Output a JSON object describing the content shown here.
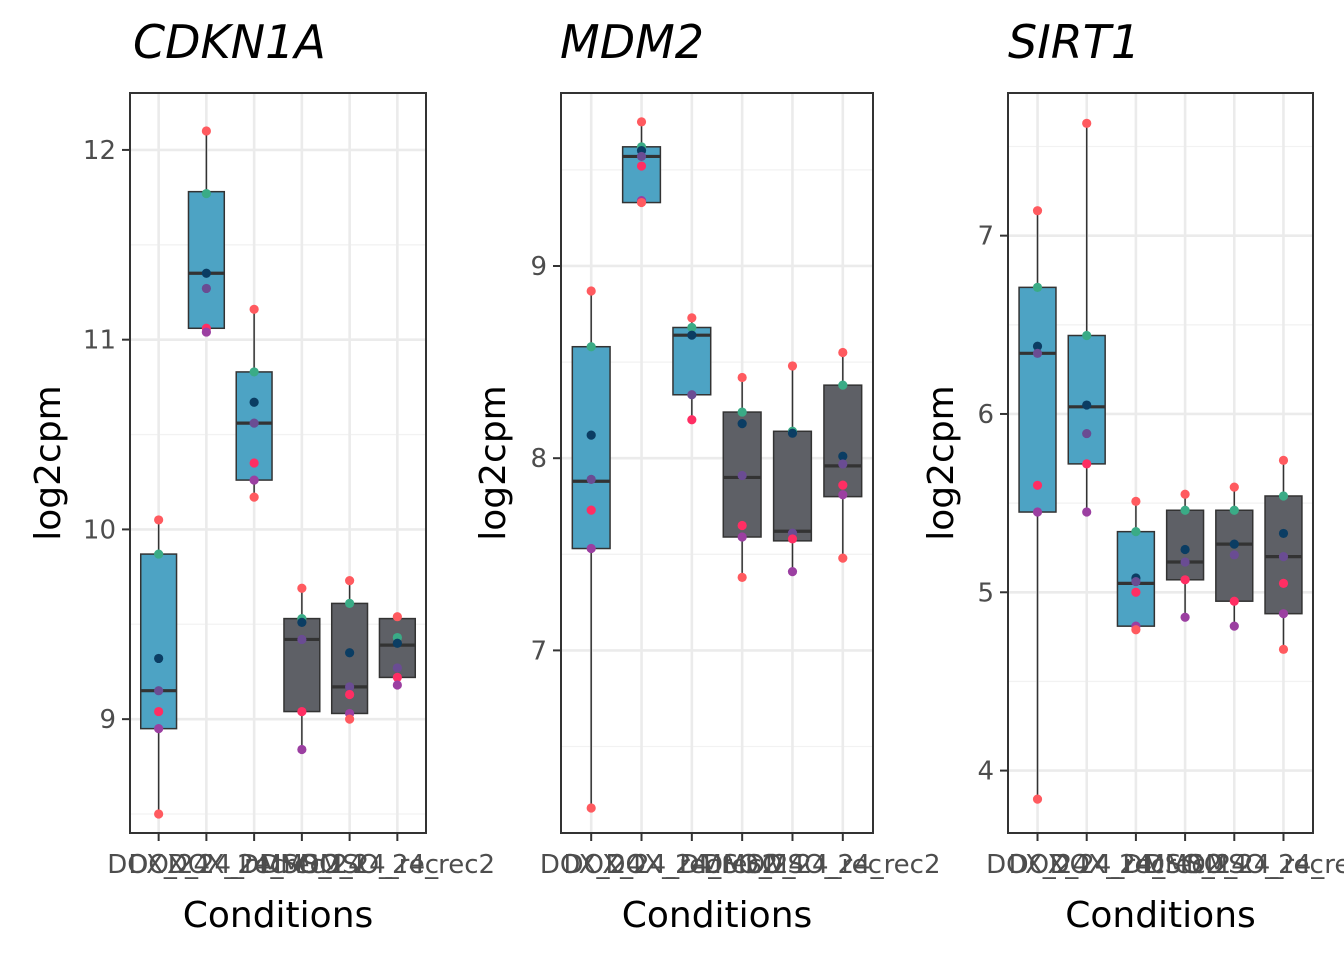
{
  "figure": {
    "ylabel": "log2cpm",
    "xlabel": "Conditions"
  },
  "colors": {
    "box_blue": "#4da3c4",
    "box_grey": "#5e6066",
    "points": [
      "#ff5a5f",
      "#3aab86",
      "#0b3d63",
      "#6a4c93",
      "#ff2e63",
      "#9b3fa1"
    ]
  },
  "chart_data": [
    {
      "type": "box",
      "title": "CDKN1A",
      "xlabel": "Conditions",
      "ylabel": "log2cpm",
      "categories": [
        "DOX_24",
        "DOX_24_rec",
        "DOX_24_rec2",
        "DMSO_24",
        "DMSO_24_rec",
        "DMSO_24_rec2"
      ],
      "ylim": [
        8.4,
        12.3
      ],
      "yticks": [
        9,
        10,
        11,
        12
      ],
      "grid": true,
      "boxes": [
        {
          "q1": 8.95,
          "median": 9.15,
          "q3": 9.87,
          "lo": 8.5,
          "hi": 10.05,
          "group": "treated"
        },
        {
          "q1": 11.06,
          "median": 11.35,
          "q3": 11.78,
          "lo": 11.04,
          "hi": 12.1,
          "group": "treated"
        },
        {
          "q1": 10.26,
          "median": 10.56,
          "q3": 10.83,
          "lo": 10.17,
          "hi": 11.16,
          "group": "treated"
        },
        {
          "q1": 9.04,
          "median": 9.42,
          "q3": 9.53,
          "lo": 8.84,
          "hi": 9.69,
          "group": "control"
        },
        {
          "q1": 9.03,
          "median": 9.17,
          "q3": 9.61,
          "lo": 9.0,
          "hi": 9.73,
          "group": "control"
        },
        {
          "q1": 9.22,
          "median": 9.39,
          "q3": 9.53,
          "lo": 9.18,
          "hi": 9.54,
          "group": "control"
        }
      ],
      "points": [
        [
          10.05,
          9.87,
          9.32,
          9.15,
          9.04,
          8.95,
          8.5
        ],
        [
          12.1,
          11.77,
          11.35,
          11.27,
          11.06,
          11.04
        ],
        [
          11.16,
          10.83,
          10.67,
          10.56,
          10.35,
          10.26,
          10.17
        ],
        [
          9.69,
          9.53,
          9.51,
          9.42,
          9.04,
          8.84
        ],
        [
          9.73,
          9.61,
          9.35,
          9.17,
          9.13,
          9.03,
          9.0
        ],
        [
          9.54,
          9.43,
          9.4,
          9.27,
          9.22,
          9.18
        ]
      ]
    },
    {
      "type": "box",
      "title": "MDM2",
      "xlabel": "Conditions",
      "ylabel": "log2cpm",
      "categories": [
        "DOX_24",
        "DOX_24_rec",
        "DOX_24_rec2",
        "DMSO_24",
        "DMSO_24_rec",
        "DMSO_24_rec2"
      ],
      "ylim": [
        6.05,
        9.9
      ],
      "yticks": [
        7,
        8,
        9
      ],
      "grid": true,
      "boxes": [
        {
          "q1": 7.53,
          "median": 7.88,
          "q3": 8.58,
          "lo": 6.18,
          "hi": 8.87,
          "group": "treated"
        },
        {
          "q1": 9.33,
          "median": 9.57,
          "q3": 9.62,
          "lo": 9.32,
          "hi": 9.75,
          "group": "treated"
        },
        {
          "q1": 8.33,
          "median": 8.64,
          "q3": 8.68,
          "lo": 8.2,
          "hi": 8.73,
          "group": "treated"
        },
        {
          "q1": 7.59,
          "median": 7.9,
          "q3": 8.24,
          "lo": 7.38,
          "hi": 8.42,
          "group": "control"
        },
        {
          "q1": 7.57,
          "median": 7.62,
          "q3": 8.14,
          "lo": 7.41,
          "hi": 8.48,
          "group": "control"
        },
        {
          "q1": 7.8,
          "median": 7.96,
          "q3": 8.38,
          "lo": 7.48,
          "hi": 8.55,
          "group": "control"
        }
      ],
      "points": [
        [
          8.87,
          8.58,
          8.12,
          7.89,
          7.73,
          7.53,
          6.18
        ],
        [
          9.75,
          9.62,
          9.6,
          9.57,
          9.52,
          9.34,
          9.33
        ],
        [
          8.73,
          8.68,
          8.64,
          8.33,
          8.2
        ],
        [
          8.42,
          8.24,
          8.18,
          7.91,
          7.65,
          7.59,
          7.38
        ],
        [
          8.48,
          8.14,
          8.13,
          7.61,
          7.58,
          7.41
        ],
        [
          8.55,
          8.38,
          8.01,
          7.97,
          7.86,
          7.81,
          7.48
        ]
      ]
    },
    {
      "type": "box",
      "title": "SIRT1",
      "xlabel": "Conditions",
      "ylabel": "log2cpm",
      "categories": [
        "DOX_24",
        "DOX_24_rec",
        "DOX_24_rec2",
        "DMSO_24",
        "DMSO_24_rec",
        "DMSO_24_rec2"
      ],
      "ylim": [
        3.65,
        7.8
      ],
      "yticks": [
        4,
        5,
        6,
        7
      ],
      "grid": true,
      "boxes": [
        {
          "q1": 5.45,
          "median": 6.34,
          "q3": 6.71,
          "lo": 3.84,
          "hi": 7.14,
          "group": "treated"
        },
        {
          "q1": 5.72,
          "median": 6.04,
          "q3": 6.44,
          "lo": 5.45,
          "hi": 7.63,
          "group": "treated"
        },
        {
          "q1": 4.81,
          "median": 5.05,
          "q3": 5.34,
          "lo": 4.79,
          "hi": 5.51,
          "group": "treated"
        },
        {
          "q1": 5.07,
          "median": 5.17,
          "q3": 5.46,
          "lo": 4.86,
          "hi": 5.55,
          "group": "control"
        },
        {
          "q1": 4.95,
          "median": 5.27,
          "q3": 5.46,
          "lo": 4.81,
          "hi": 5.59,
          "group": "control"
        },
        {
          "q1": 4.88,
          "median": 5.2,
          "q3": 5.54,
          "lo": 4.68,
          "hi": 5.74,
          "group": "control"
        }
      ],
      "points": [
        [
          7.14,
          6.71,
          6.38,
          6.34,
          5.6,
          5.45,
          3.84
        ],
        [
          7.63,
          6.44,
          6.05,
          5.89,
          5.72,
          5.45
        ],
        [
          5.51,
          5.34,
          5.08,
          5.06,
          5.0,
          4.81,
          4.79
        ],
        [
          5.55,
          5.46,
          5.24,
          5.17,
          5.07,
          4.86
        ],
        [
          5.59,
          5.46,
          5.27,
          5.21,
          4.95,
          4.81
        ],
        [
          5.74,
          5.54,
          5.33,
          5.2,
          5.05,
          4.88,
          4.68
        ]
      ]
    }
  ]
}
